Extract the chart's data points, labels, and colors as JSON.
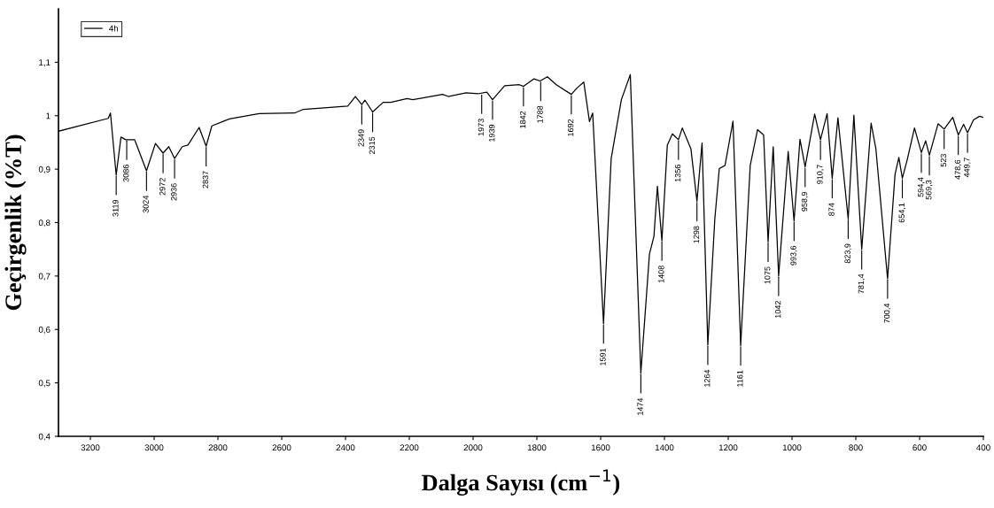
{
  "chart_data": {
    "type": "line",
    "xlabel": "Dalga Sayısı (cm$^{−1}$)",
    "ylabel": "Geçirgenlik (%T)",
    "xlim": [
      3300,
      400
    ],
    "xticks": [
      3200,
      3000,
      2800,
      2600,
      2400,
      2200,
      2000,
      1800,
      1600,
      1400,
      1200,
      1000,
      800,
      600,
      400
    ],
    "ylim": [
      0.4,
      1.2
    ],
    "yticks": [
      {
        "value": 0.4,
        "label": "0,4"
      },
      {
        "value": 0.5,
        "label": "0,5"
      },
      {
        "value": 0.6,
        "label": "0,6"
      },
      {
        "value": 0.7,
        "label": "0,7"
      },
      {
        "value": 0.8,
        "label": "0,8"
      },
      {
        "value": 0.9,
        "label": "0,9"
      },
      1,
      {
        "value": 1.1,
        "label": "1,1"
      }
    ],
    "grid": false,
    "legend": "top left",
    "marker": "none",
    "line_style": "solid",
    "series": [
      {
        "name": "4h",
        "color": "#000000",
        "x": [
          3300,
          3144,
          3137,
          3119,
          3104,
          3089,
          3061,
          3024,
          2996,
          2972,
          2954,
          2936,
          2912,
          2894,
          2859,
          2837,
          2819,
          2764,
          2671,
          2560,
          2532,
          2393,
          2369,
          2349,
          2339,
          2315,
          2282,
          2258,
          2207,
          2189,
          2161,
          2096,
          2077,
          2022,
          1985,
          1957,
          1939,
          1901,
          1855,
          1842,
          1809,
          1790,
          1767,
          1739,
          1692,
          1674,
          1653,
          1635,
          1625,
          1591,
          1567,
          1535,
          1507,
          1474,
          1447,
          1433,
          1422,
          1408,
          1391,
          1375,
          1356,
          1344,
          1317,
          1298,
          1282,
          1264,
          1242,
          1228,
          1210,
          1185,
          1161,
          1131,
          1108,
          1089,
          1075,
          1059,
          1042,
          1012,
          993.6,
          975,
          958.9,
          929,
          910.7,
          890,
          874,
          856,
          823.9,
          806,
          781.4,
          752,
          737,
          700.4,
          677,
          665,
          654.1,
          639,
          616,
          594.4,
          581,
          569.3,
          542,
          523,
          496,
          478.6,
          462,
          449.7,
          431,
          412,
          400
        ],
        "values": [
          0.971,
          0.995,
          1.005,
          0.889,
          0.96,
          0.955,
          0.955,
          0.897,
          0.948,
          0.93,
          0.942,
          0.92,
          0.942,
          0.945,
          0.978,
          0.943,
          0.981,
          0.994,
          1.004,
          1.005,
          1.012,
          1.018,
          1.036,
          1.021,
          1.029,
          1.007,
          1.025,
          1.025,
          1.032,
          1.03,
          1.033,
          1.04,
          1.036,
          1.043,
          1.041,
          1.044,
          1.03,
          1.056,
          1.058,
          1.055,
          1.069,
          1.065,
          1.073,
          1.058,
          1.04,
          1.052,
          1.063,
          0.989,
          1.005,
          0.611,
          0.92,
          1.03,
          1.077,
          0.518,
          0.741,
          0.774,
          0.868,
          0.766,
          0.945,
          0.966,
          0.955,
          0.977,
          0.938,
          0.84,
          0.949,
          0.571,
          0.807,
          0.901,
          0.907,
          0.99,
          0.57,
          0.907,
          0.974,
          0.964,
          0.764,
          0.942,
          0.7,
          0.933,
          0.803,
          0.956,
          0.904,
          1.003,
          0.955,
          1.004,
          0.883,
          0.996,
          0.807,
          1.001,
          0.75,
          0.986,
          0.938,
          0.695,
          0.89,
          0.922,
          0.883,
          0.917,
          0.977,
          0.931,
          0.953,
          0.926,
          0.985,
          0.975,
          0.997,
          0.964,
          0.984,
          0.968,
          0.992,
          0.999,
          0.997
        ]
      }
    ],
    "annotations": [
      {
        "text": "3119",
        "x": 3119,
        "y": 0.889
      },
      {
        "text": "3086",
        "x": 3086,
        "y": 0.955
      },
      {
        "text": "3024",
        "x": 3024,
        "y": 0.897
      },
      {
        "text": "2972",
        "x": 2972,
        "y": 0.93
      },
      {
        "text": "2936",
        "x": 2936,
        "y": 0.92
      },
      {
        "text": "2837",
        "x": 2837,
        "y": 0.943
      },
      {
        "text": "2349",
        "x": 2349,
        "y": 1.021
      },
      {
        "text": "2315",
        "x": 2315,
        "y": 1.007
      },
      {
        "text": "1973",
        "x": 1973,
        "y": 1.041
      },
      {
        "text": "1939",
        "x": 1939,
        "y": 1.03
      },
      {
        "text": "1842",
        "x": 1842,
        "y": 1.055
      },
      {
        "text": "1788",
        "x": 1788,
        "y": 1.065
      },
      {
        "text": "1692",
        "x": 1692,
        "y": 1.04
      },
      {
        "text": "1591",
        "x": 1591,
        "y": 0.611
      },
      {
        "text": "1474",
        "x": 1474,
        "y": 0.518
      },
      {
        "text": "1408",
        "x": 1408,
        "y": 0.766
      },
      {
        "text": "1356",
        "x": 1356,
        "y": 0.955
      },
      {
        "text": "1298",
        "x": 1298,
        "y": 0.84
      },
      {
        "text": "1264",
        "x": 1264,
        "y": 0.571
      },
      {
        "text": "1161",
        "x": 1161,
        "y": 0.57
      },
      {
        "text": "1075",
        "x": 1075,
        "y": 0.764
      },
      {
        "text": "1042",
        "x": 1042,
        "y": 0.7
      },
      {
        "text": "993,6",
        "x": 993.6,
        "y": 0.803
      },
      {
        "text": "958,9",
        "x": 958.9,
        "y": 0.904
      },
      {
        "text": "910,7",
        "x": 910.7,
        "y": 0.955
      },
      {
        "text": "874",
        "x": 874,
        "y": 0.883
      },
      {
        "text": "823,9",
        "x": 823.9,
        "y": 0.807
      },
      {
        "text": "781,4",
        "x": 781.4,
        "y": 0.75
      },
      {
        "text": "700,4",
        "x": 700.4,
        "y": 0.695
      },
      {
        "text": "654,1",
        "x": 654.1,
        "y": 0.883
      },
      {
        "text": "594,4",
        "x": 594.4,
        "y": 0.931
      },
      {
        "text": "569,3",
        "x": 569.3,
        "y": 0.926
      },
      {
        "text": "523",
        "x": 523,
        "y": 0.975
      },
      {
        "text": "478,6",
        "x": 478.6,
        "y": 0.964
      },
      {
        "text": "449,7",
        "x": 449.7,
        "y": 0.968
      }
    ]
  }
}
